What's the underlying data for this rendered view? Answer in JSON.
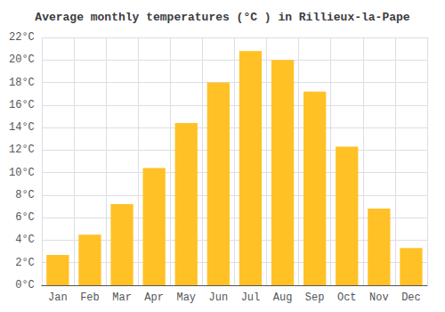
{
  "chart_data": {
    "type": "bar",
    "title": "Average monthly temperatures (°C ) in Rillieux-la-Pape",
    "categories": [
      "Jan",
      "Feb",
      "Mar",
      "Apr",
      "May",
      "Jun",
      "Jul",
      "Aug",
      "Sep",
      "Oct",
      "Nov",
      "Dec"
    ],
    "values": [
      2.7,
      4.5,
      7.2,
      10.4,
      14.4,
      18.0,
      20.8,
      20.0,
      17.2,
      12.3,
      6.8,
      3.3
    ],
    "color": "#FFC125",
    "ylim": [
      0,
      22
    ],
    "yticks": [
      {
        "value": 0,
        "label": "0°C"
      },
      {
        "value": 2,
        "label": "2°C"
      },
      {
        "value": 4,
        "label": "4°C"
      },
      {
        "value": 6,
        "label": "6°C"
      },
      {
        "value": 8,
        "label": "8°C"
      },
      {
        "value": 10,
        "label": "10°C"
      },
      {
        "value": 12,
        "label": "12°C"
      },
      {
        "value": 14,
        "label": "14°C"
      },
      {
        "value": 16,
        "label": "16°C"
      },
      {
        "value": 18,
        "label": "18°C"
      },
      {
        "value": 20,
        "label": "20°C"
      },
      {
        "value": 22,
        "label": "22°C"
      }
    ],
    "grid": true
  }
}
